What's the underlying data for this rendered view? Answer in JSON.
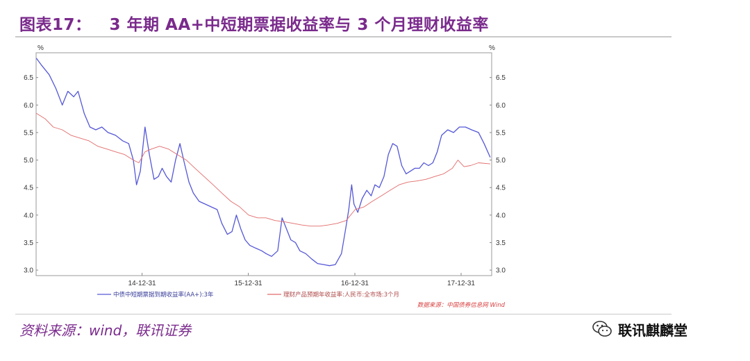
{
  "header": {
    "figure_no": "图表17：",
    "title": "3 年期 AA+中短期票据收益率与 3 个月理财收益率"
  },
  "footer": {
    "source": "资料来源：wind，联讯证券",
    "watermark": "联讯麒麟堂"
  },
  "chart_data": {
    "type": "line",
    "xlabel": "",
    "ylabel": "",
    "y_unit_left": "%",
    "y_unit_right": "%",
    "x_ticks": [
      "14-12-31",
      "15-12-31",
      "16-12-31",
      "17-12-31"
    ],
    "x_range": [
      "2014-01-01",
      "2018-04-15"
    ],
    "ylim": [
      2.9,
      6.95
    ],
    "y_ticks": [
      3.0,
      3.5,
      4.0,
      4.5,
      5.0,
      5.5,
      6.0,
      6.5
    ],
    "y_tick_labels": [
      "3.0",
      "3.5",
      "4.0",
      "4.5",
      "5.0",
      "5.5",
      "6.0",
      "6.5"
    ],
    "source_note": "数据来源：中国债券信息网 Wind",
    "legend_placement": "bottom",
    "series": [
      {
        "name": "中债中短期票据到期收益率(AA+):3年",
        "color": "#5457d6",
        "points": [
          [
            "2014-01-02",
            6.85
          ],
          [
            "2014-01-20",
            6.72
          ],
          [
            "2014-02-15",
            6.55
          ],
          [
            "2014-03-10",
            6.3
          ],
          [
            "2014-04-01",
            6.0
          ],
          [
            "2014-04-20",
            6.25
          ],
          [
            "2014-05-10",
            6.15
          ],
          [
            "2014-05-25",
            6.25
          ],
          [
            "2014-06-15",
            5.85
          ],
          [
            "2014-07-05",
            5.6
          ],
          [
            "2014-07-25",
            5.55
          ],
          [
            "2014-08-15",
            5.6
          ],
          [
            "2014-09-05",
            5.5
          ],
          [
            "2014-10-01",
            5.45
          ],
          [
            "2014-10-25",
            5.35
          ],
          [
            "2014-11-15",
            5.3
          ],
          [
            "2014-12-01",
            5.0
          ],
          [
            "2014-12-12",
            4.55
          ],
          [
            "2014-12-25",
            4.8
          ],
          [
            "2015-01-10",
            5.6
          ],
          [
            "2015-01-25",
            5.1
          ],
          [
            "2015-02-10",
            4.65
          ],
          [
            "2015-02-25",
            4.7
          ],
          [
            "2015-03-10",
            4.85
          ],
          [
            "2015-03-25",
            4.7
          ],
          [
            "2015-04-10",
            4.6
          ],
          [
            "2015-04-25",
            5.0
          ],
          [
            "2015-05-10",
            5.3
          ],
          [
            "2015-05-25",
            4.95
          ],
          [
            "2015-06-10",
            4.6
          ],
          [
            "2015-06-25",
            4.4
          ],
          [
            "2015-07-15",
            4.25
          ],
          [
            "2015-08-05",
            4.2
          ],
          [
            "2015-08-25",
            4.15
          ],
          [
            "2015-09-15",
            4.1
          ],
          [
            "2015-10-01",
            3.85
          ],
          [
            "2015-10-20",
            3.65
          ],
          [
            "2015-11-05",
            3.7
          ],
          [
            "2015-11-20",
            4.0
          ],
          [
            "2015-12-05",
            3.75
          ],
          [
            "2015-12-20",
            3.55
          ],
          [
            "2016-01-05",
            3.45
          ],
          [
            "2016-01-25",
            3.4
          ],
          [
            "2016-02-15",
            3.35
          ],
          [
            "2016-03-01",
            3.3
          ],
          [
            "2016-03-20",
            3.25
          ],
          [
            "2016-04-10",
            3.35
          ],
          [
            "2016-04-25",
            3.95
          ],
          [
            "2016-05-10",
            3.75
          ],
          [
            "2016-05-25",
            3.55
          ],
          [
            "2016-06-10",
            3.5
          ],
          [
            "2016-06-25",
            3.35
          ],
          [
            "2016-07-15",
            3.3
          ],
          [
            "2016-08-05",
            3.2
          ],
          [
            "2016-08-25",
            3.12
          ],
          [
            "2016-09-15",
            3.1
          ],
          [
            "2016-10-05",
            3.08
          ],
          [
            "2016-10-25",
            3.1
          ],
          [
            "2016-11-15",
            3.3
          ],
          [
            "2016-12-01",
            3.8
          ],
          [
            "2016-12-10",
            4.1
          ],
          [
            "2016-12-20",
            4.55
          ],
          [
            "2016-12-28",
            4.2
          ],
          [
            "2017-01-10",
            4.05
          ],
          [
            "2017-01-25",
            4.3
          ],
          [
            "2017-02-10",
            4.45
          ],
          [
            "2017-02-25",
            4.35
          ],
          [
            "2017-03-10",
            4.55
          ],
          [
            "2017-03-25",
            4.5
          ],
          [
            "2017-04-10",
            4.7
          ],
          [
            "2017-04-25",
            5.1
          ],
          [
            "2017-05-10",
            5.3
          ],
          [
            "2017-05-25",
            5.25
          ],
          [
            "2017-06-10",
            4.9
          ],
          [
            "2017-06-25",
            4.75
          ],
          [
            "2017-07-10",
            4.8
          ],
          [
            "2017-07-25",
            4.85
          ],
          [
            "2017-08-10",
            4.85
          ],
          [
            "2017-08-25",
            4.95
          ],
          [
            "2017-09-10",
            4.9
          ],
          [
            "2017-09-25",
            4.95
          ],
          [
            "2017-10-10",
            5.15
          ],
          [
            "2017-10-25",
            5.45
          ],
          [
            "2017-11-15",
            5.55
          ],
          [
            "2017-12-05",
            5.5
          ],
          [
            "2017-12-25",
            5.6
          ],
          [
            "2018-01-15",
            5.6
          ],
          [
            "2018-02-05",
            5.55
          ],
          [
            "2018-03-01",
            5.5
          ],
          [
            "2018-03-20",
            5.3
          ],
          [
            "2018-04-10",
            5.05
          ]
        ]
      },
      {
        "name": "理财产品预期年收益率:人民币:全市场:3个月",
        "color": "#e26a6a",
        "points": [
          [
            "2014-01-02",
            5.85
          ],
          [
            "2014-02-01",
            5.75
          ],
          [
            "2014-03-01",
            5.6
          ],
          [
            "2014-04-01",
            5.55
          ],
          [
            "2014-05-01",
            5.45
          ],
          [
            "2014-06-01",
            5.4
          ],
          [
            "2014-07-01",
            5.35
          ],
          [
            "2014-08-01",
            5.25
          ],
          [
            "2014-09-01",
            5.2
          ],
          [
            "2014-10-01",
            5.15
          ],
          [
            "2014-11-01",
            5.1
          ],
          [
            "2014-12-01",
            5.0
          ],
          [
            "2014-12-20",
            4.95
          ],
          [
            "2015-01-10",
            5.15
          ],
          [
            "2015-02-01",
            5.2
          ],
          [
            "2015-03-01",
            5.25
          ],
          [
            "2015-04-01",
            5.2
          ],
          [
            "2015-05-01",
            5.1
          ],
          [
            "2015-06-01",
            5.0
          ],
          [
            "2015-07-01",
            4.85
          ],
          [
            "2015-08-01",
            4.7
          ],
          [
            "2015-09-01",
            4.55
          ],
          [
            "2015-10-01",
            4.4
          ],
          [
            "2015-11-01",
            4.25
          ],
          [
            "2015-12-01",
            4.15
          ],
          [
            "2016-01-01",
            4.0
          ],
          [
            "2016-02-01",
            3.95
          ],
          [
            "2016-03-01",
            3.95
          ],
          [
            "2016-04-01",
            3.9
          ],
          [
            "2016-05-01",
            3.88
          ],
          [
            "2016-06-01",
            3.85
          ],
          [
            "2016-07-01",
            3.82
          ],
          [
            "2016-08-01",
            3.8
          ],
          [
            "2016-09-01",
            3.8
          ],
          [
            "2016-10-01",
            3.82
          ],
          [
            "2016-11-01",
            3.85
          ],
          [
            "2016-12-01",
            3.9
          ],
          [
            "2017-01-01",
            4.1
          ],
          [
            "2017-02-01",
            4.15
          ],
          [
            "2017-03-01",
            4.25
          ],
          [
            "2017-04-01",
            4.35
          ],
          [
            "2017-05-01",
            4.45
          ],
          [
            "2017-06-01",
            4.55
          ],
          [
            "2017-07-01",
            4.6
          ],
          [
            "2017-08-01",
            4.62
          ],
          [
            "2017-09-01",
            4.65
          ],
          [
            "2017-10-01",
            4.7
          ],
          [
            "2017-11-01",
            4.75
          ],
          [
            "2017-12-01",
            4.85
          ],
          [
            "2017-12-20",
            5.0
          ],
          [
            "2018-01-10",
            4.88
          ],
          [
            "2018-02-01",
            4.9
          ],
          [
            "2018-03-01",
            4.95
          ],
          [
            "2018-04-10",
            4.93
          ]
        ]
      }
    ]
  }
}
